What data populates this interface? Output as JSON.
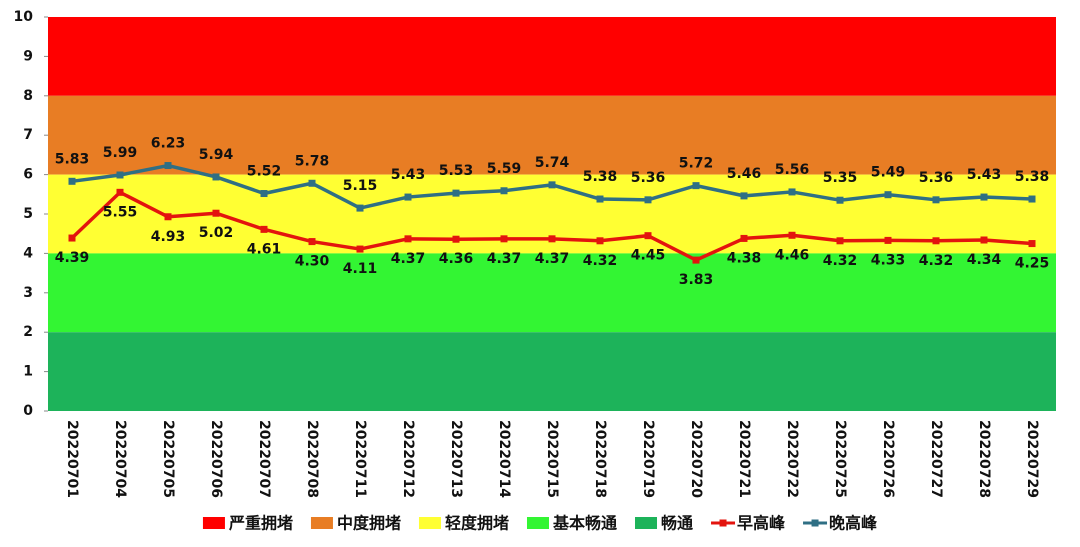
{
  "chart_data": {
    "type": "line",
    "categories": [
      "20220701",
      "20220704",
      "20220705",
      "20220706",
      "20220707",
      "20220708",
      "20220711",
      "20220712",
      "20220713",
      "20220714",
      "20220715",
      "20220718",
      "20220719",
      "20220720",
      "20220721",
      "20220722",
      "20220725",
      "20220726",
      "20220727",
      "20220728",
      "20220729"
    ],
    "bands": [
      {
        "name": "严重拥堵",
        "color": "#ff0000",
        "range": [
          8,
          10
        ]
      },
      {
        "name": "中度拥堵",
        "color": "#e87d24",
        "range": [
          6,
          8
        ]
      },
      {
        "name": "轻度拥堵",
        "color": "#ffff33",
        "range": [
          4,
          6
        ]
      },
      {
        "name": "基本畅通",
        "color": "#33f533",
        "range": [
          2,
          4
        ]
      },
      {
        "name": "畅通",
        "color": "#1db35a",
        "range": [
          0,
          2
        ]
      }
    ],
    "series": [
      {
        "name": "早高峰",
        "color": "#e3140e",
        "values": [
          4.39,
          5.55,
          4.93,
          5.02,
          4.61,
          4.3,
          4.11,
          4.37,
          4.36,
          4.37,
          4.37,
          4.32,
          4.45,
          3.83,
          4.38,
          4.46,
          4.32,
          4.33,
          4.32,
          4.34,
          4.25
        ],
        "value_labels": [
          "4.39",
          "5.55",
          "4.93",
          "5.02",
          "4.61",
          "4.30",
          "4.11",
          "4.37",
          "4.36",
          "4.37",
          "4.37",
          "4.32",
          "4.45",
          "3.83",
          "4.38",
          "4.46",
          "4.32",
          "4.33",
          "4.32",
          "4.34",
          "4.25"
        ]
      },
      {
        "name": "晚高峰",
        "color": "#2f6f84",
        "values": [
          5.83,
          5.99,
          6.23,
          5.94,
          5.52,
          5.78,
          5.15,
          5.43,
          5.53,
          5.59,
          5.74,
          5.38,
          5.36,
          5.72,
          5.46,
          5.56,
          5.35,
          5.49,
          5.36,
          5.43,
          5.38
        ],
        "value_labels": [
          "5.83",
          "5.99",
          "6.23",
          "5.94",
          "5.52",
          "5.78",
          "5.15",
          "5.43",
          "5.53",
          "5.59",
          "5.74",
          "5.38",
          "5.36",
          "5.72",
          "5.46",
          "5.56",
          "5.35",
          "5.49",
          "5.36",
          "5.43",
          "5.38"
        ]
      }
    ],
    "ylim": [
      0,
      10
    ],
    "yticks": [
      0,
      1,
      2,
      3,
      4,
      5,
      6,
      7,
      8,
      9,
      10
    ]
  }
}
